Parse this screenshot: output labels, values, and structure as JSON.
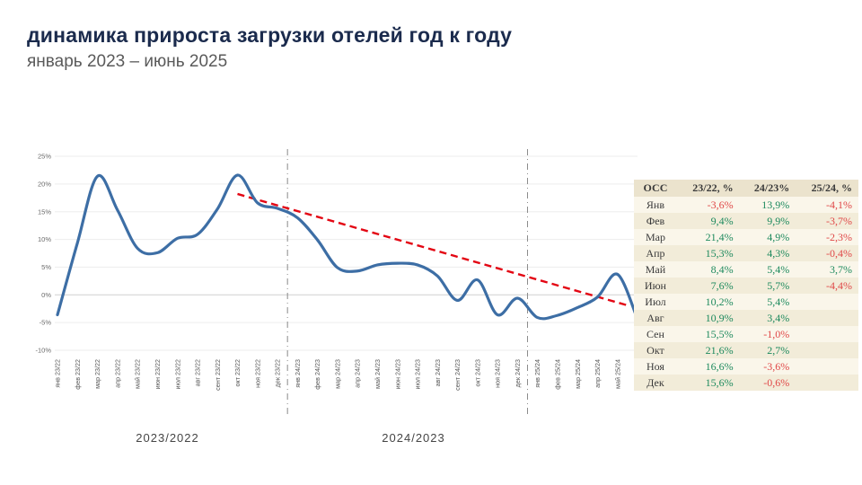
{
  "header": {
    "title": "динамика прироста загрузки отелей год к году",
    "subtitle": "январь 2023 – июнь 2025"
  },
  "chart_data": {
    "type": "line",
    "title": "динамика прироста загрузки отелей год к году",
    "xlabel": "",
    "ylabel": "",
    "ylim": [
      -10,
      25
    ],
    "yticks": [
      25,
      20,
      15,
      10,
      5,
      0,
      -5,
      -10
    ],
    "grid": "horizontal-faint",
    "x_labels": [
      "янв 23/22",
      "фев 23/22",
      "мар 23/22",
      "апр 23/22",
      "май 23/22",
      "июн 23/22",
      "июл 23/22",
      "авг 23/22",
      "сент 23/22",
      "окт 23/22",
      "ноя 23/22",
      "дек 23/22",
      "янв 24/23",
      "фев 24/23",
      "мар 24/23",
      "апр 24/23",
      "май 24/23",
      "июн 24/23",
      "июл 24/23",
      "авг 24/23",
      "сент 24/23",
      "окт 24/23",
      "ноя 24/23",
      "дек 24/23",
      "янв 25/24",
      "фев 25/24",
      "мар 25/24",
      "апр 25/24",
      "май 25/24",
      "июн 25/24"
    ],
    "values": [
      -3.6,
      9.4,
      21.4,
      15.3,
      8.4,
      7.6,
      10.2,
      10.9,
      15.5,
      21.6,
      16.6,
      15.6,
      13.9,
      9.9,
      4.9,
      4.3,
      5.4,
      5.7,
      5.4,
      3.4,
      -1.0,
      2.7,
      -3.6,
      -0.6,
      -4.1,
      -3.7,
      -2.3,
      -0.4,
      3.7,
      -4.4
    ],
    "line_color": "#3d6ea5",
    "trend": {
      "color": "#e30613",
      "style": "dashed",
      "start_index": 9,
      "start_value": 18.2,
      "end_index": 28.6,
      "end_value": -2.0
    },
    "dividers": [
      11.5,
      23.5
    ],
    "period_labels": [
      {
        "label": "2023/2022",
        "center_index": 5.5
      },
      {
        "label": "2024/2023",
        "center_index": 17.8
      }
    ]
  },
  "table": {
    "headers": [
      "ОСС",
      "23/22, %",
      "24/23%",
      "25/24, %"
    ],
    "rows": [
      {
        "month": "Янв",
        "v1": "-3,6%",
        "v2": "13,9%",
        "v3": "-4,1%"
      },
      {
        "month": "Фев",
        "v1": "9,4%",
        "v2": "9,9%",
        "v3": "-3,7%"
      },
      {
        "month": "Мар",
        "v1": "21,4%",
        "v2": "4,9%",
        "v3": "-2,3%"
      },
      {
        "month": "Апр",
        "v1": "15,3%",
        "v2": "4,3%",
        "v3": "-0,4%"
      },
      {
        "month": "Май",
        "v1": "8,4%",
        "v2": "5,4%",
        "v3": "3,7%"
      },
      {
        "month": "Июн",
        "v1": "7,6%",
        "v2": "5,7%",
        "v3": "-4,4%"
      },
      {
        "month": "Июл",
        "v1": "10,2%",
        "v2": "5,4%",
        "v3": ""
      },
      {
        "month": "Авг",
        "v1": "10,9%",
        "v2": "3,4%",
        "v3": ""
      },
      {
        "month": "Сен",
        "v1": "15,5%",
        "v2": "-1,0%",
        "v3": ""
      },
      {
        "month": "Окт",
        "v1": "21,6%",
        "v2": "2,7%",
        "v3": ""
      },
      {
        "month": "Ноя",
        "v1": "16,6%",
        "v2": "-3,6%",
        "v3": ""
      },
      {
        "month": "Дек",
        "v1": "15,6%",
        "v2": "-0,6%",
        "v3": ""
      }
    ]
  },
  "colors": {
    "title": "#1b2b4d",
    "positive": "#1e8a5e",
    "negative": "#e04848",
    "line": "#3d6ea5",
    "trend": "#e30613"
  }
}
